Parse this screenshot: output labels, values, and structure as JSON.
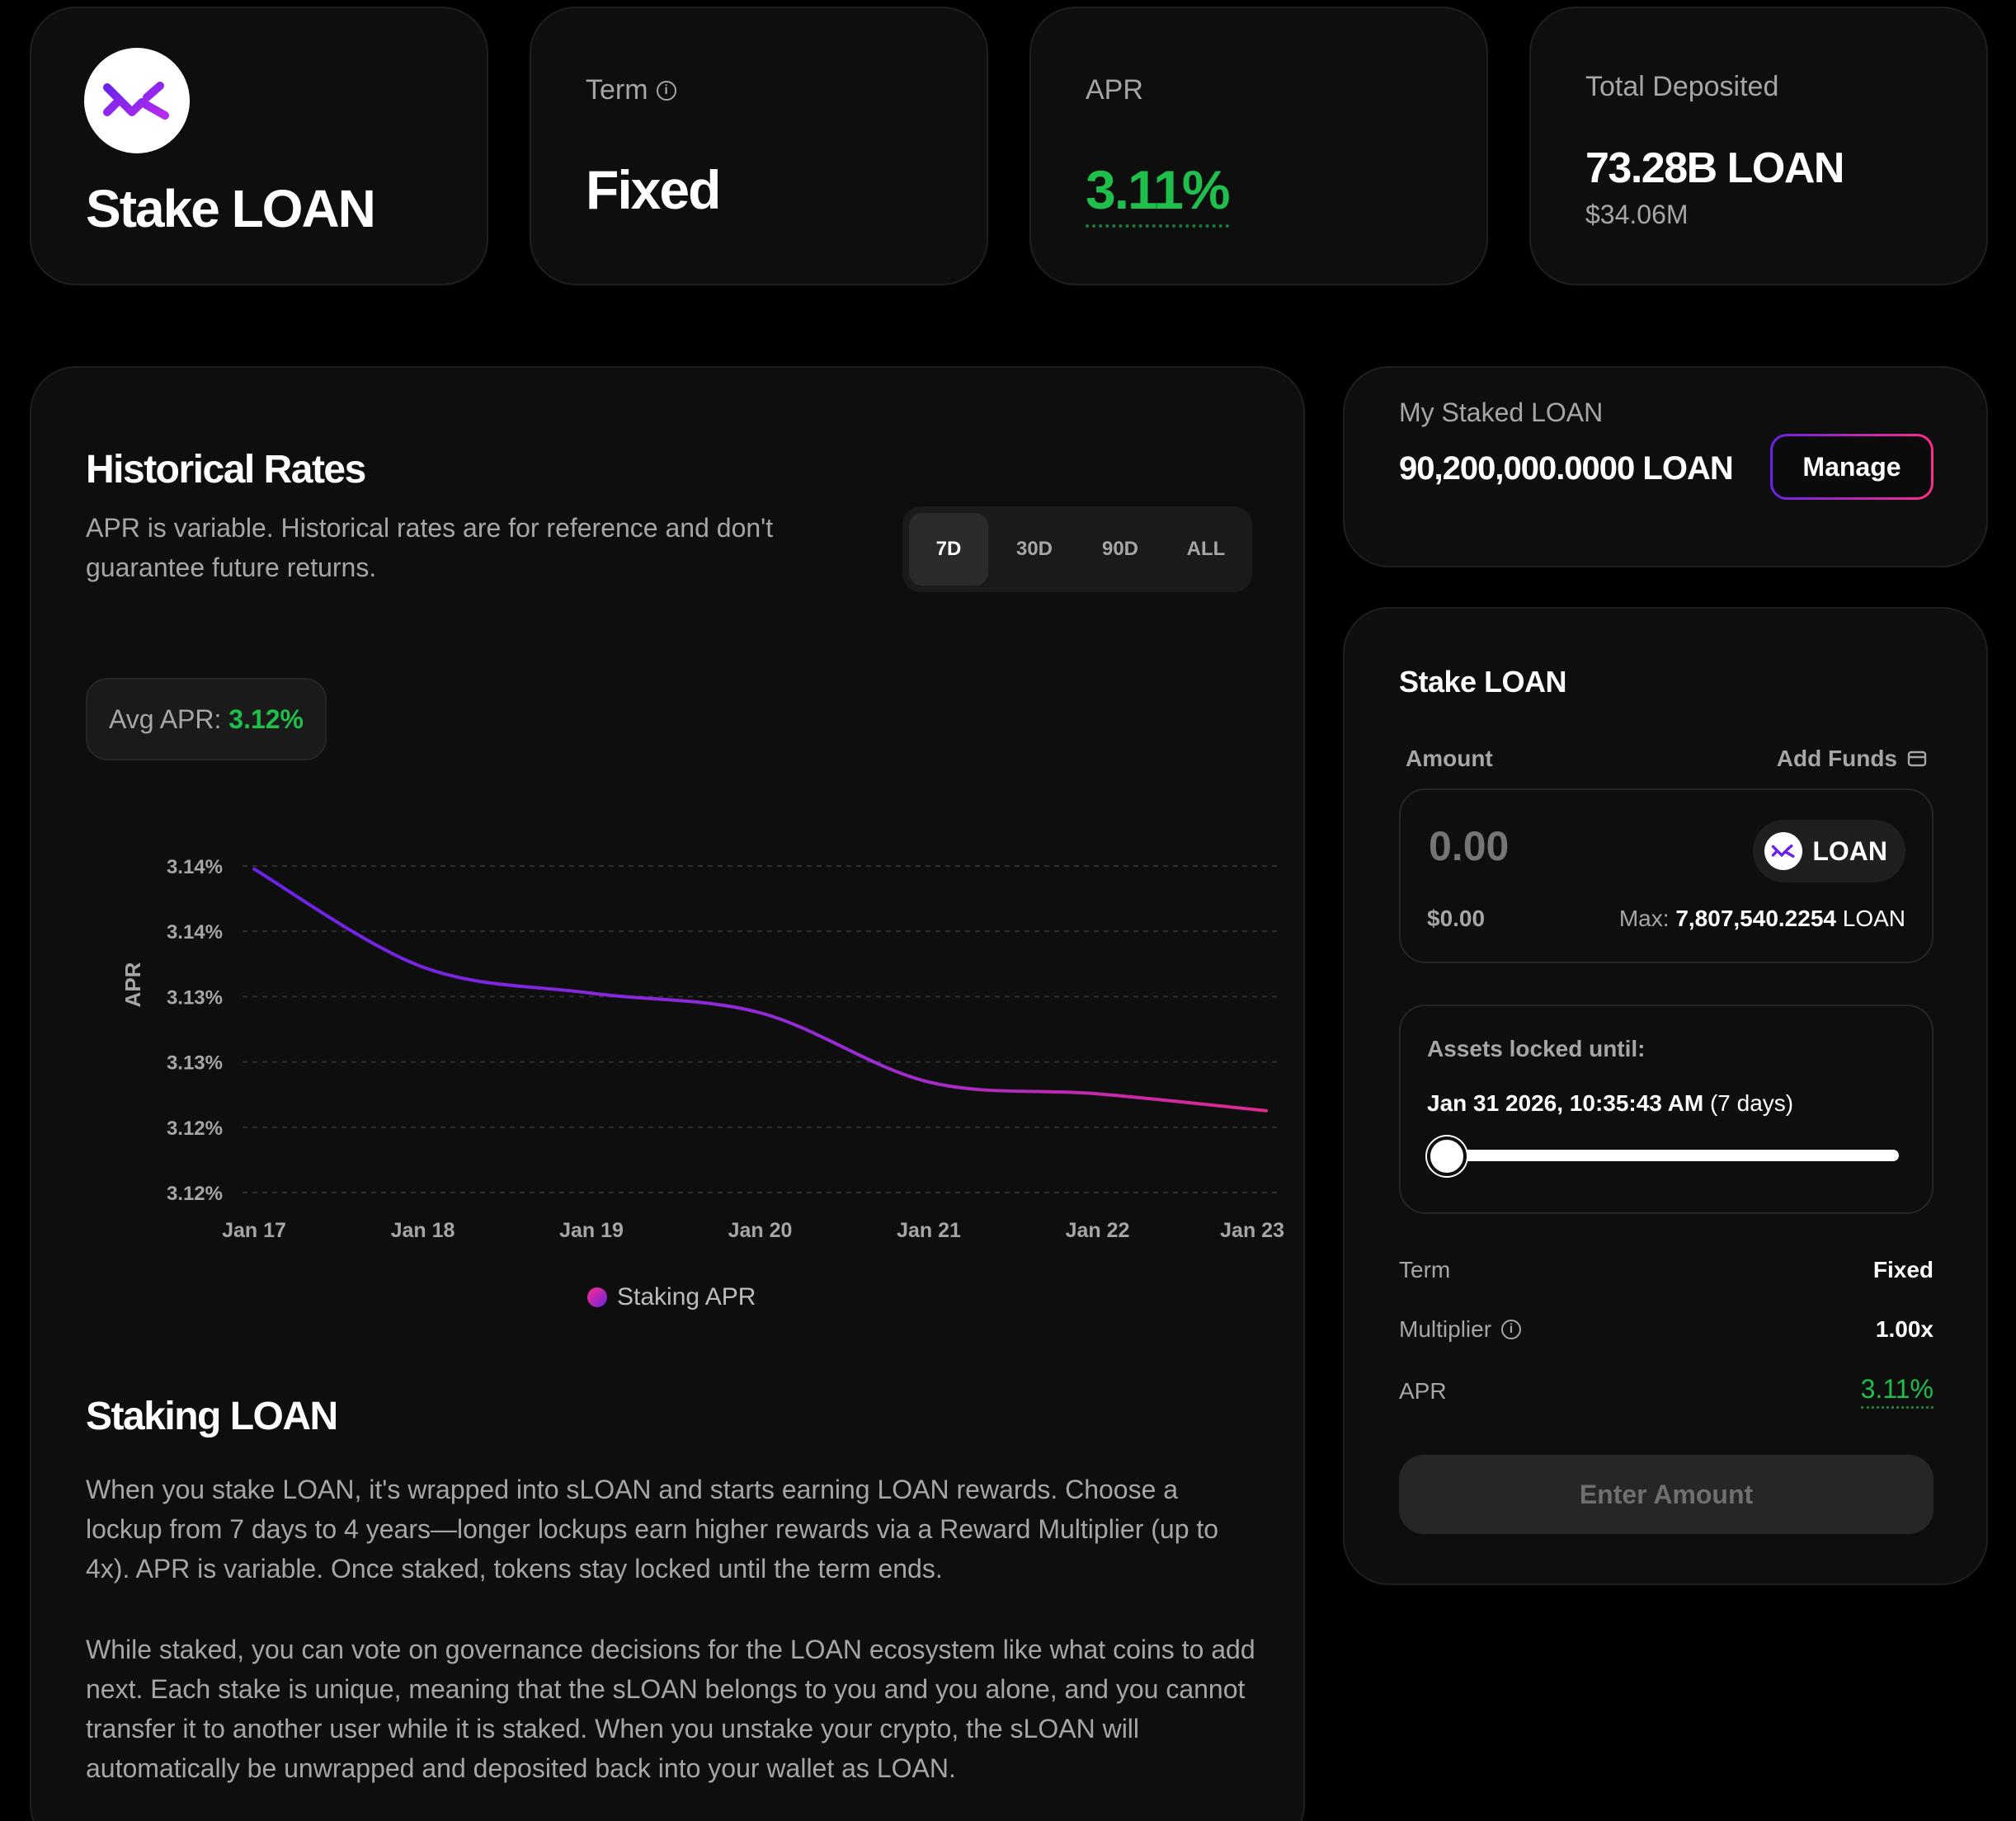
{
  "colors": {
    "background": "#000000",
    "card": "#0e0e0e",
    "accent_green": "#1fbf4c",
    "accent_purple": "#6b22e8",
    "accent_pink": "#ff2d86",
    "muted_text": "#a6a6a6"
  },
  "stats": {
    "title": "Stake LOAN",
    "logo_icon": "loan-logo-icon",
    "term_label": "Term",
    "term_value": "Fixed",
    "apr_label": "APR",
    "apr_value": "3.11%",
    "deposited_label": "Total Deposited",
    "deposited_value": "73.28B LOAN",
    "deposited_usd": "$34.06M"
  },
  "history": {
    "title": "Historical Rates",
    "description": "APR is variable. Historical rates are for reference and don't guarantee future returns.",
    "tabs": [
      {
        "label": "7D",
        "active": true
      },
      {
        "label": "30D",
        "active": false
      },
      {
        "label": "90D",
        "active": false
      },
      {
        "label": "ALL",
        "active": false
      }
    ],
    "avg_label": "Avg APR:",
    "avg_value": "3.12%"
  },
  "chart_data": {
    "type": "line",
    "ylabel": "APR",
    "xlabel": "",
    "x": [
      "Jan 17",
      "Jan 18",
      "Jan 19",
      "Jan 20",
      "Jan 21",
      "Jan 22",
      "Jan 23"
    ],
    "y_tick_labels": [
      "3.14%",
      "3.14%",
      "3.13%",
      "3.13%",
      "3.12%",
      "3.12%"
    ],
    "ylim": [
      3.115,
      3.14
    ],
    "grid": true,
    "legend_position": "bottom",
    "series": [
      {
        "name": "Staking APR",
        "values": [
          3.1385,
          3.131,
          3.129,
          3.1275,
          3.1222,
          3.1213,
          3.12
        ]
      }
    ]
  },
  "about": {
    "title": "Staking LOAN",
    "paragraph1": "When you stake LOAN, it's wrapped into sLOAN and starts earning LOAN rewards. Choose a lockup from 7 days to 4 years—longer lockups earn higher rewards via a Reward Multiplier (up to 4x). APR is variable. Once staked, tokens stay locked until the term ends.",
    "paragraph2": "While staked, you can vote on governance decisions for the LOAN ecosystem like what coins to add next. Each stake is unique, meaning that the sLOAN belongs to you and you alone, and you cannot transfer it to another user while it is staked. When you unstake your crypto, the sLOAN will automatically be unwrapped and deposited back into your wallet as LOAN."
  },
  "my_staked": {
    "label": "My Staked LOAN",
    "value": "90,200,000.0000 LOAN",
    "manage_label": "Manage"
  },
  "stake_form": {
    "title": "Stake LOAN",
    "amount_label": "Amount",
    "add_funds_label": "Add Funds",
    "amount_placeholder": "0.00",
    "token_label": "LOAN",
    "usd_value": "$0.00",
    "max_label": "Max:",
    "max_value": "7,807,540.2254",
    "max_unit": "LOAN",
    "lock_label": "Assets locked until:",
    "lock_date": "Jan 31 2026, 10:35:43 AM",
    "lock_days": "(7 days)",
    "lock_slider_value": 0,
    "term_label": "Term",
    "term_value": "Fixed",
    "multiplier_label": "Multiplier",
    "multiplier_value": "1.00x",
    "apr_label": "APR",
    "apr_value": "3.11%",
    "submit_label": "Enter Amount"
  }
}
